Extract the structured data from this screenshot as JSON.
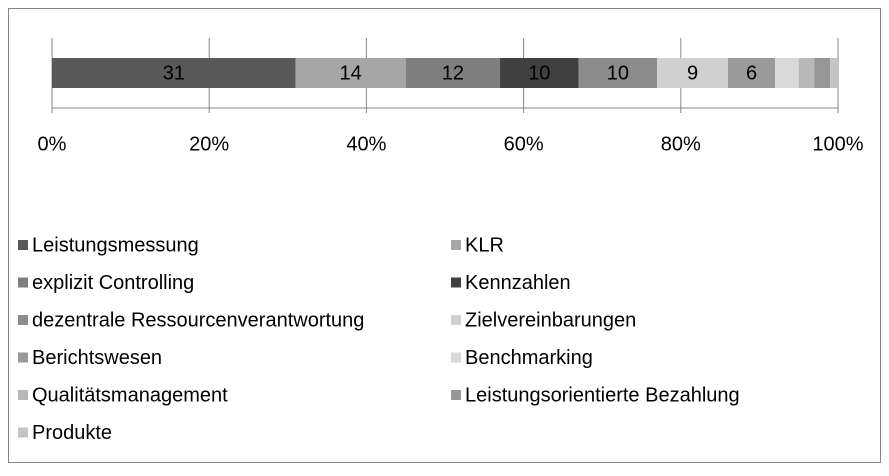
{
  "chart_data": {
    "type": "stacked_bar_100",
    "xlim": [
      0,
      100
    ],
    "xticks": [
      {
        "value": 0,
        "label": "0%"
      },
      {
        "value": 20,
        "label": "20%"
      },
      {
        "value": 40,
        "label": "40%"
      },
      {
        "value": 60,
        "label": "60%"
      },
      {
        "value": 80,
        "label": "80%"
      },
      {
        "value": 100,
        "label": "100%"
      }
    ],
    "grid": true,
    "legend": "bottom",
    "series": [
      {
        "name": "Leistungsmessung",
        "color": "#595959",
        "values": [
          31
        ]
      },
      {
        "name": "KLR",
        "color": "#a6a6a6",
        "values": [
          14
        ]
      },
      {
        "name": "explizit Controlling",
        "color": "#7f7f7f",
        "values": [
          12
        ]
      },
      {
        "name": "Kennzahlen",
        "color": "#404040",
        "values": [
          10
        ]
      },
      {
        "name": "dezentrale Ressourcenverantwortung",
        "color": "#8c8c8c",
        "values": [
          10
        ]
      },
      {
        "name": "Zielvereinbarungen",
        "color": "#d0d0d0",
        "values": [
          9
        ]
      },
      {
        "name": "Berichtswesen",
        "color": "#9a9a9a",
        "values": [
          6
        ]
      },
      {
        "name": "Benchmarking",
        "color": "#d9d9d9",
        "values": [
          3
        ]
      },
      {
        "name": "Qualitätsmanagement",
        "color": "#b8b8b8",
        "values": [
          2
        ]
      },
      {
        "name": "Leistungsorientierte Bezahlung",
        "color": "#969696",
        "values": [
          2
        ]
      },
      {
        "name": "Produkte",
        "color": "#c4c4c4",
        "values": [
          1
        ]
      }
    ]
  }
}
